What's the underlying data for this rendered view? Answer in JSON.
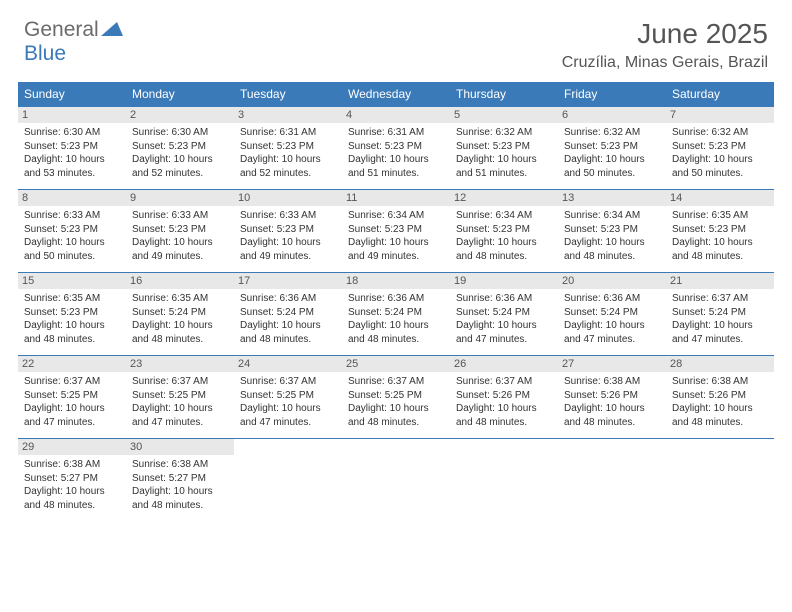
{
  "logo": {
    "general": "General",
    "blue": "Blue"
  },
  "header": {
    "month_title": "June 2025",
    "location": "Cruzília, Minas Gerais, Brazil"
  },
  "colors": {
    "header_bg": "#3a7ab8",
    "daynum_bg": "#e8e8e8",
    "page_bg": "#ffffff",
    "text": "#333333",
    "title_text": "#555555"
  },
  "day_labels": [
    "Sunday",
    "Monday",
    "Tuesday",
    "Wednesday",
    "Thursday",
    "Friday",
    "Saturday"
  ],
  "weeks": [
    [
      {
        "num": "1",
        "sr": "Sunrise: 6:30 AM",
        "ss": "Sunset: 5:23 PM",
        "dl": "Daylight: 10 hours and 53 minutes."
      },
      {
        "num": "2",
        "sr": "Sunrise: 6:30 AM",
        "ss": "Sunset: 5:23 PM",
        "dl": "Daylight: 10 hours and 52 minutes."
      },
      {
        "num": "3",
        "sr": "Sunrise: 6:31 AM",
        "ss": "Sunset: 5:23 PM",
        "dl": "Daylight: 10 hours and 52 minutes."
      },
      {
        "num": "4",
        "sr": "Sunrise: 6:31 AM",
        "ss": "Sunset: 5:23 PM",
        "dl": "Daylight: 10 hours and 51 minutes."
      },
      {
        "num": "5",
        "sr": "Sunrise: 6:32 AM",
        "ss": "Sunset: 5:23 PM",
        "dl": "Daylight: 10 hours and 51 minutes."
      },
      {
        "num": "6",
        "sr": "Sunrise: 6:32 AM",
        "ss": "Sunset: 5:23 PM",
        "dl": "Daylight: 10 hours and 50 minutes."
      },
      {
        "num": "7",
        "sr": "Sunrise: 6:32 AM",
        "ss": "Sunset: 5:23 PM",
        "dl": "Daylight: 10 hours and 50 minutes."
      }
    ],
    [
      {
        "num": "8",
        "sr": "Sunrise: 6:33 AM",
        "ss": "Sunset: 5:23 PM",
        "dl": "Daylight: 10 hours and 50 minutes."
      },
      {
        "num": "9",
        "sr": "Sunrise: 6:33 AM",
        "ss": "Sunset: 5:23 PM",
        "dl": "Daylight: 10 hours and 49 minutes."
      },
      {
        "num": "10",
        "sr": "Sunrise: 6:33 AM",
        "ss": "Sunset: 5:23 PM",
        "dl": "Daylight: 10 hours and 49 minutes."
      },
      {
        "num": "11",
        "sr": "Sunrise: 6:34 AM",
        "ss": "Sunset: 5:23 PM",
        "dl": "Daylight: 10 hours and 49 minutes."
      },
      {
        "num": "12",
        "sr": "Sunrise: 6:34 AM",
        "ss": "Sunset: 5:23 PM",
        "dl": "Daylight: 10 hours and 48 minutes."
      },
      {
        "num": "13",
        "sr": "Sunrise: 6:34 AM",
        "ss": "Sunset: 5:23 PM",
        "dl": "Daylight: 10 hours and 48 minutes."
      },
      {
        "num": "14",
        "sr": "Sunrise: 6:35 AM",
        "ss": "Sunset: 5:23 PM",
        "dl": "Daylight: 10 hours and 48 minutes."
      }
    ],
    [
      {
        "num": "15",
        "sr": "Sunrise: 6:35 AM",
        "ss": "Sunset: 5:23 PM",
        "dl": "Daylight: 10 hours and 48 minutes."
      },
      {
        "num": "16",
        "sr": "Sunrise: 6:35 AM",
        "ss": "Sunset: 5:24 PM",
        "dl": "Daylight: 10 hours and 48 minutes."
      },
      {
        "num": "17",
        "sr": "Sunrise: 6:36 AM",
        "ss": "Sunset: 5:24 PM",
        "dl": "Daylight: 10 hours and 48 minutes."
      },
      {
        "num": "18",
        "sr": "Sunrise: 6:36 AM",
        "ss": "Sunset: 5:24 PM",
        "dl": "Daylight: 10 hours and 48 minutes."
      },
      {
        "num": "19",
        "sr": "Sunrise: 6:36 AM",
        "ss": "Sunset: 5:24 PM",
        "dl": "Daylight: 10 hours and 47 minutes."
      },
      {
        "num": "20",
        "sr": "Sunrise: 6:36 AM",
        "ss": "Sunset: 5:24 PM",
        "dl": "Daylight: 10 hours and 47 minutes."
      },
      {
        "num": "21",
        "sr": "Sunrise: 6:37 AM",
        "ss": "Sunset: 5:24 PM",
        "dl": "Daylight: 10 hours and 47 minutes."
      }
    ],
    [
      {
        "num": "22",
        "sr": "Sunrise: 6:37 AM",
        "ss": "Sunset: 5:25 PM",
        "dl": "Daylight: 10 hours and 47 minutes."
      },
      {
        "num": "23",
        "sr": "Sunrise: 6:37 AM",
        "ss": "Sunset: 5:25 PM",
        "dl": "Daylight: 10 hours and 47 minutes."
      },
      {
        "num": "24",
        "sr": "Sunrise: 6:37 AM",
        "ss": "Sunset: 5:25 PM",
        "dl": "Daylight: 10 hours and 47 minutes."
      },
      {
        "num": "25",
        "sr": "Sunrise: 6:37 AM",
        "ss": "Sunset: 5:25 PM",
        "dl": "Daylight: 10 hours and 48 minutes."
      },
      {
        "num": "26",
        "sr": "Sunrise: 6:37 AM",
        "ss": "Sunset: 5:26 PM",
        "dl": "Daylight: 10 hours and 48 minutes."
      },
      {
        "num": "27",
        "sr": "Sunrise: 6:38 AM",
        "ss": "Sunset: 5:26 PM",
        "dl": "Daylight: 10 hours and 48 minutes."
      },
      {
        "num": "28",
        "sr": "Sunrise: 6:38 AM",
        "ss": "Sunset: 5:26 PM",
        "dl": "Daylight: 10 hours and 48 minutes."
      }
    ],
    [
      {
        "num": "29",
        "sr": "Sunrise: 6:38 AM",
        "ss": "Sunset: 5:27 PM",
        "dl": "Daylight: 10 hours and 48 minutes."
      },
      {
        "num": "30",
        "sr": "Sunrise: 6:38 AM",
        "ss": "Sunset: 5:27 PM",
        "dl": "Daylight: 10 hours and 48 minutes."
      },
      null,
      null,
      null,
      null,
      null
    ]
  ]
}
